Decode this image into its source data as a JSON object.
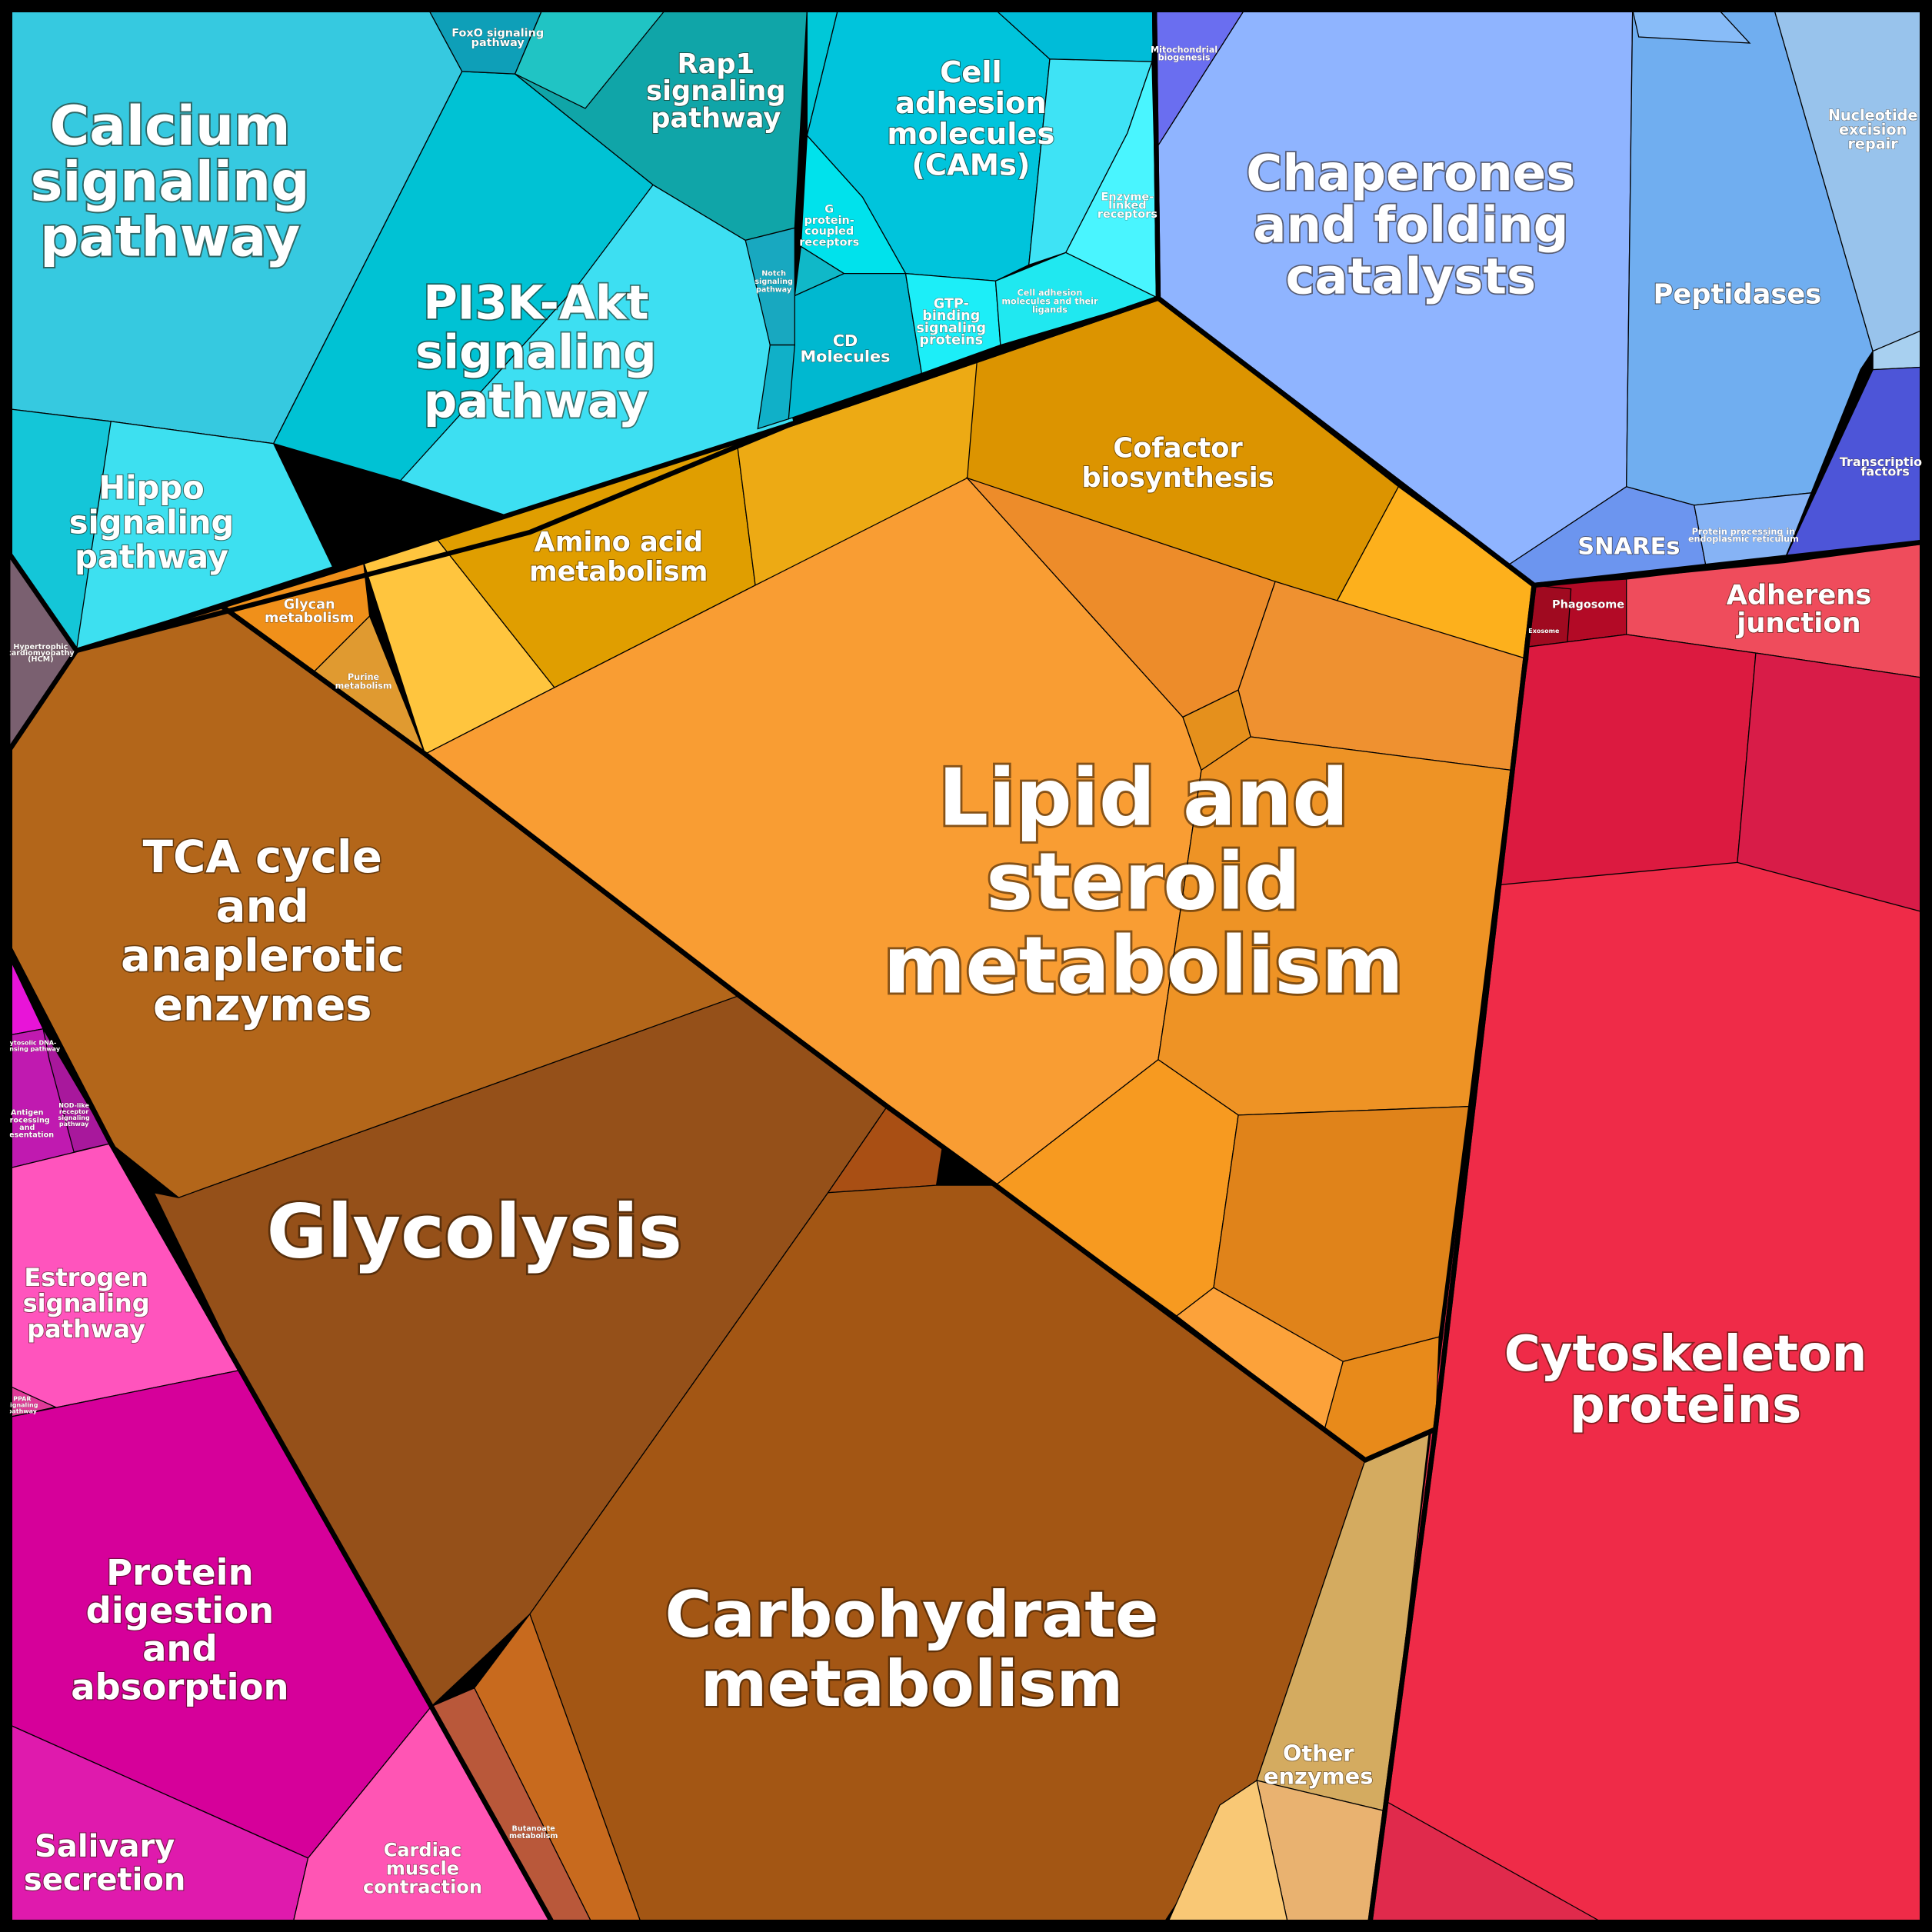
{
  "cells": [
    {
      "label": [
        "Calcium",
        "signaling",
        "pathway"
      ]
    },
    {
      "label": [
        "PI3K-Akt",
        "signaling",
        "pathway"
      ]
    },
    {
      "label": [
        "Hippo",
        "signaling",
        "pathway"
      ]
    },
    {
      "label": [
        "Rap1",
        "signaling",
        "pathway"
      ]
    },
    {
      "label": [
        "Cell",
        "adhesion",
        "molecules",
        "(CAMs)"
      ]
    },
    {
      "label": [
        "Chaperones",
        "and folding",
        "catalysts"
      ]
    },
    {
      "label": [
        "Peptidases"
      ]
    },
    {
      "label": [
        "Nucleotide",
        "excision",
        "repair"
      ]
    },
    {
      "label": [
        "Transcription",
        "factors"
      ]
    },
    {
      "label": [
        "SNAREs"
      ]
    },
    {
      "label": [
        "Adherens",
        "junction"
      ]
    },
    {
      "label": [
        "Cytoskeleton",
        "proteins"
      ]
    },
    {
      "label": [
        "Lipid and",
        "steroid",
        "metabolism"
      ]
    },
    {
      "label": [
        "Cofactor",
        "biosynthesis"
      ]
    },
    {
      "label": [
        "Amino acid",
        "metabolism"
      ]
    },
    {
      "label": [
        "Glycan",
        "metabolism"
      ]
    },
    {
      "label": [
        "Purine",
        "metabolism"
      ]
    },
    {
      "label": [
        "TCA cycle",
        "and",
        "anaplerotic",
        "enzymes"
      ]
    },
    {
      "label": [
        "Glycolysis"
      ]
    },
    {
      "label": [
        "Carbohydrate",
        "metabolism"
      ]
    },
    {
      "label": [
        "Other",
        "enzymes"
      ]
    },
    {
      "label": [
        "Estrogen",
        "signaling",
        "pathway"
      ]
    },
    {
      "label": [
        "Protein",
        "digestion",
        "and",
        "absorption"
      ]
    },
    {
      "label": [
        "Salivary",
        "secretion"
      ]
    },
    {
      "label": [
        "Cardiac",
        "muscle",
        "contraction"
      ]
    },
    {
      "label": [
        "Butanoate",
        "metabolism"
      ]
    },
    {
      "label": [
        "FoxO signaling",
        "pathway"
      ]
    },
    {
      "label": [
        "Mitochondrial",
        "biogenesis"
      ]
    },
    {
      "label": [
        "G",
        "protein-",
        "coupled",
        "receptors"
      ]
    },
    {
      "label": [
        "Notch",
        "signaling",
        "pathway"
      ]
    },
    {
      "label": [
        "Enzyme-",
        "linked",
        "receptors"
      ]
    },
    {
      "label": [
        "GTP-",
        "binding",
        "signaling",
        "proteins"
      ]
    },
    {
      "label": [
        "Cell adhesion",
        "molecules and their",
        "ligands"
      ]
    },
    {
      "label": [
        "CD",
        "Molecules"
      ]
    },
    {
      "label": [
        "Phagosome"
      ]
    },
    {
      "label": [
        "Exosome"
      ]
    },
    {
      "label": [
        "Protein processing in",
        "endoplasmic reticulum"
      ]
    },
    {
      "label": [
        "Hypertrophic",
        "cardiomyopathy",
        "(HCM)"
      ]
    },
    {
      "label": [
        "Cytosolic DNA-",
        "sensing pathway"
      ]
    },
    {
      "label": [
        "Antigen",
        "processing",
        "and",
        "presentation"
      ]
    },
    {
      "label": [
        "NOD-like",
        "receptor",
        "signaling",
        "pathway"
      ]
    },
    {
      "label": [
        "PPAR",
        "signaling",
        "pathway"
      ]
    }
  ]
}
